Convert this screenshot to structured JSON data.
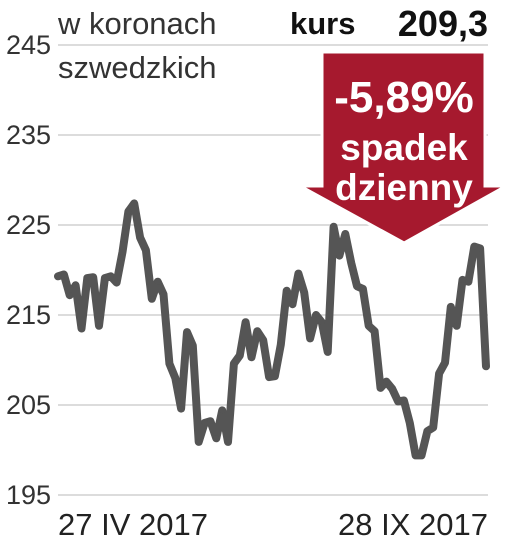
{
  "header": {
    "unit_line1": "w koronach",
    "unit_line2": "szwedzkich",
    "kurs_label": "kurs",
    "kurs_value": "209,3"
  },
  "badge": {
    "change": "-5,89%",
    "line1": "spadek",
    "line2": "dzienny",
    "color": "#a6192e"
  },
  "chart_data": {
    "type": "line",
    "title": "",
    "xlabel": "",
    "ylabel": "w koronach szwedzkich",
    "ylim": [
      195,
      245
    ],
    "yticks": [
      "245",
      "235",
      "225",
      "215",
      "205",
      "195"
    ],
    "ytick_values": [
      245,
      235,
      225,
      215,
      205,
      195
    ],
    "x_labels": [
      "27 IV 2017",
      "28 IX 2017"
    ],
    "grid": true,
    "line_color": "#555555",
    "series": [
      {
        "values": [
          219.3,
          219.5,
          217.2,
          218.3,
          213.5,
          219.1,
          219.2,
          213.8,
          219.1,
          219.3,
          218.6,
          222.0,
          226.5,
          227.4,
          223.6,
          222.2,
          216.8,
          218.7,
          217.3,
          209.6,
          208.0,
          204.6,
          213.1,
          211.6,
          200.9,
          203.0,
          203.2,
          201.3,
          204.4,
          200.9,
          209.6,
          210.5,
          214.2,
          210.3,
          213.2,
          212.2,
          208.1,
          208.2,
          211.7,
          217.7,
          216.2,
          219.6,
          217.5,
          212.4,
          215.0,
          214.2,
          210.9,
          224.8,
          221.6,
          224.0,
          220.8,
          218.2,
          217.9,
          213.8,
          213.2,
          206.9,
          207.6,
          206.8,
          205.4,
          205.5,
          203.0,
          199.4,
          199.4,
          202.1,
          202.5,
          208.5,
          209.7,
          215.9,
          213.8,
          218.9,
          218.7,
          222.6,
          222.4,
          209.3
        ]
      }
    ]
  }
}
